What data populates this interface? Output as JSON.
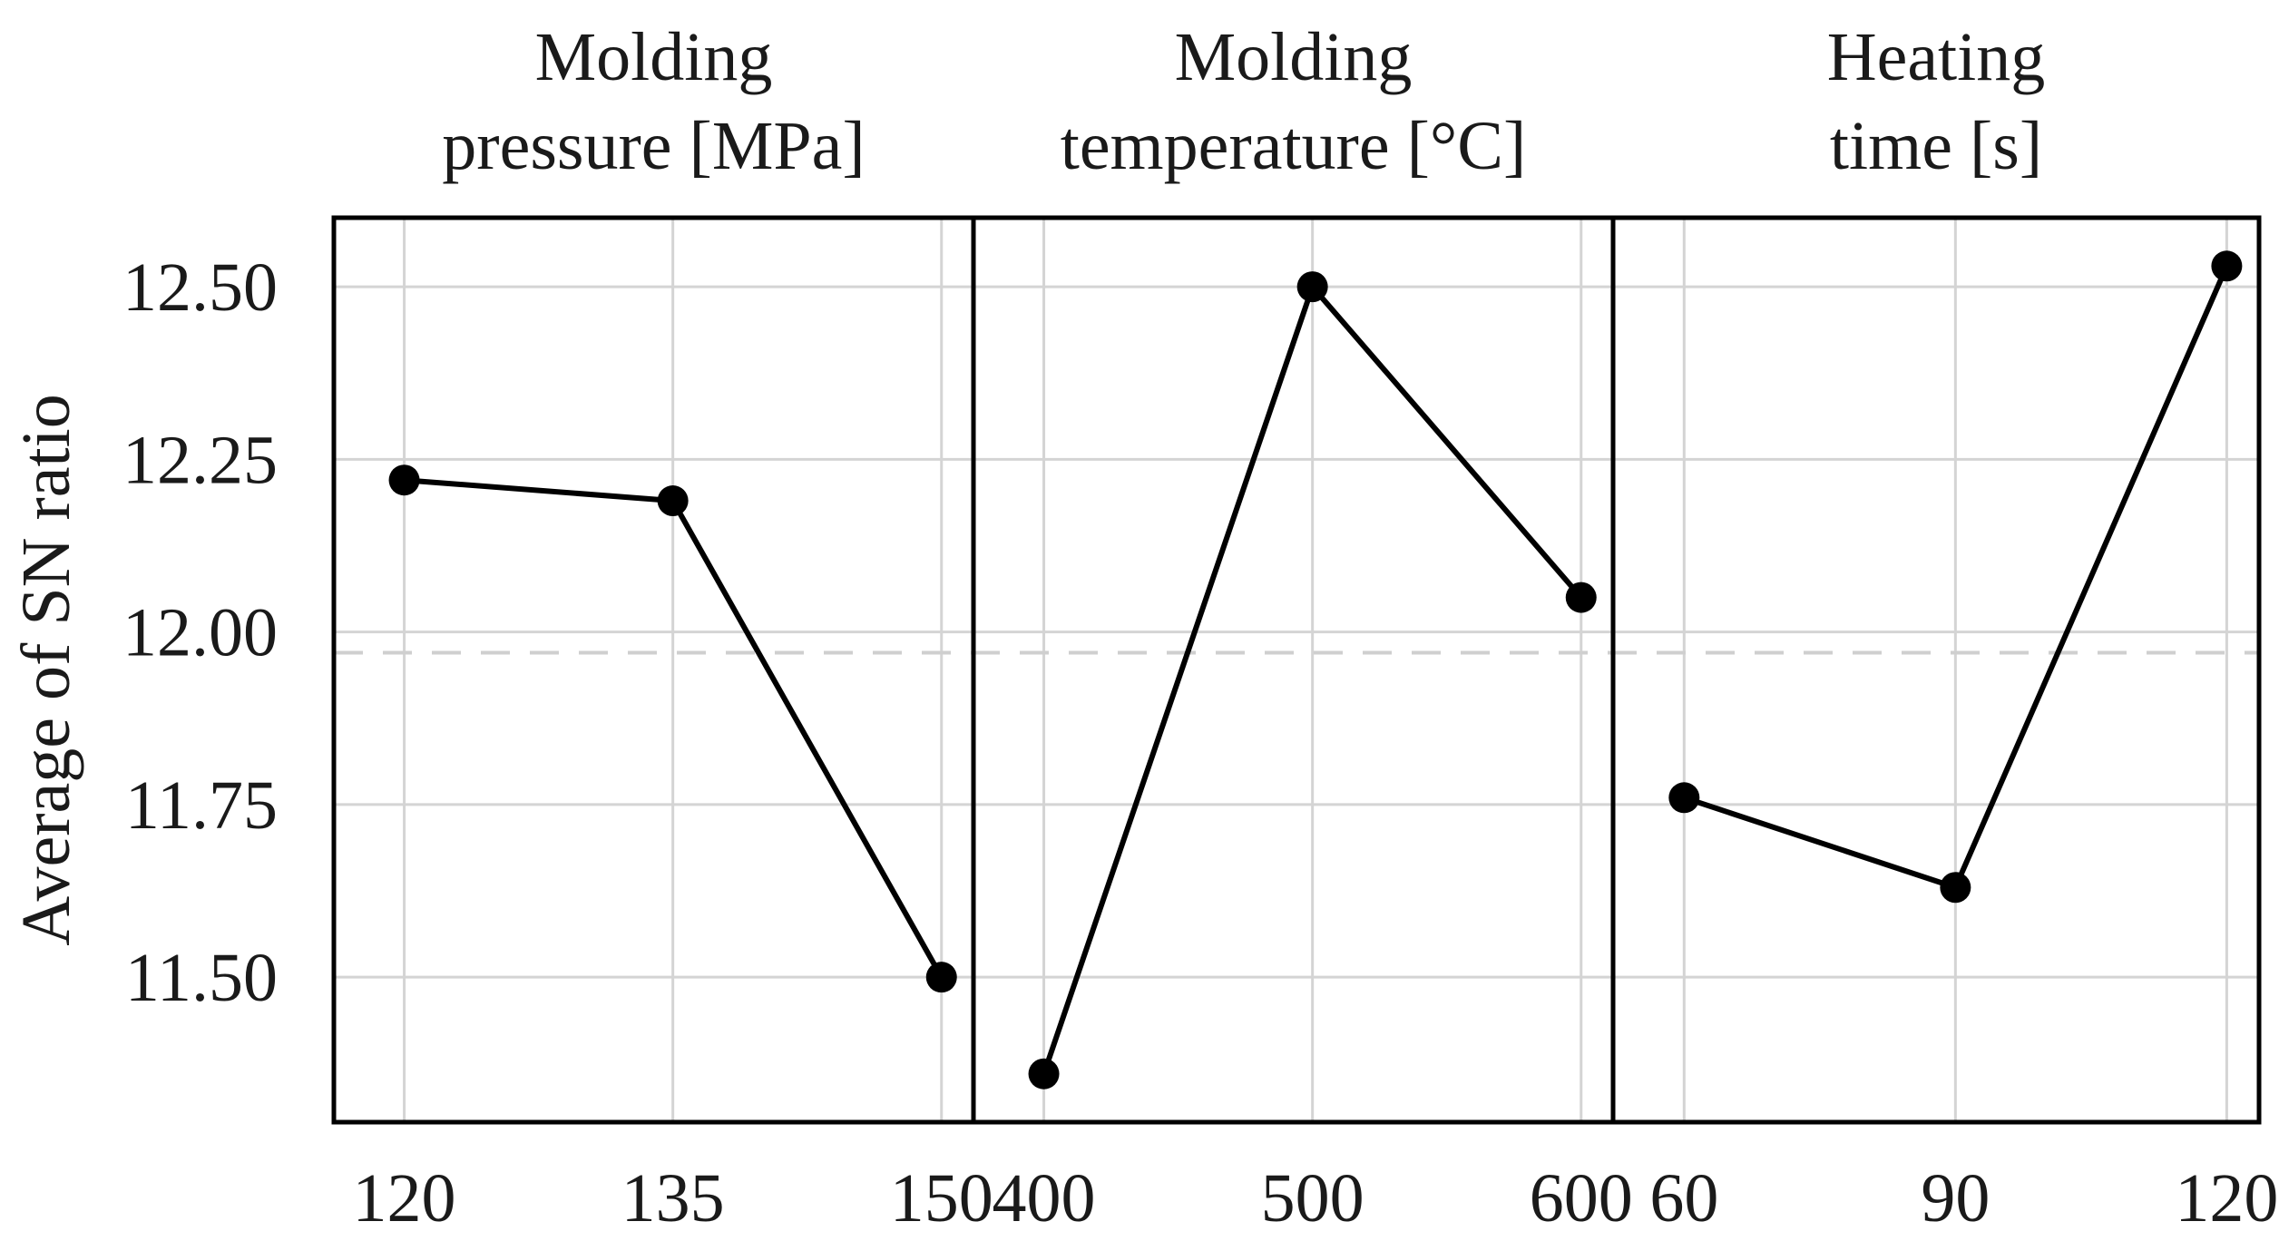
{
  "chart_data": {
    "type": "line",
    "ylabel": "Average of SN ratio",
    "ylim": [
      11.29,
      12.6
    ],
    "yticks": [
      "12.50",
      "12.25",
      "12.00",
      "11.75",
      "11.50"
    ],
    "grid": true,
    "mean_line": {
      "value": 11.97,
      "style": "dashed"
    },
    "panels": [
      {
        "title_lines": [
          "Molding",
          "pressure [MPa]"
        ],
        "categories": [
          "120",
          "135",
          "150"
        ],
        "values": [
          12.22,
          12.19,
          11.5
        ]
      },
      {
        "title_lines": [
          "Molding",
          "temperature [°C]"
        ],
        "categories": [
          "400",
          "500",
          "600"
        ],
        "values": [
          11.36,
          12.5,
          12.05
        ]
      },
      {
        "title_lines": [
          "Heating",
          "time [s]"
        ],
        "categories": [
          "60",
          "90",
          "120"
        ],
        "values": [
          11.76,
          11.63,
          12.53
        ]
      }
    ],
    "colors": {
      "line": "#000000",
      "marker": "#000000",
      "grid": "#d4d4d4",
      "mean_line": "#cfcfcf"
    }
  }
}
